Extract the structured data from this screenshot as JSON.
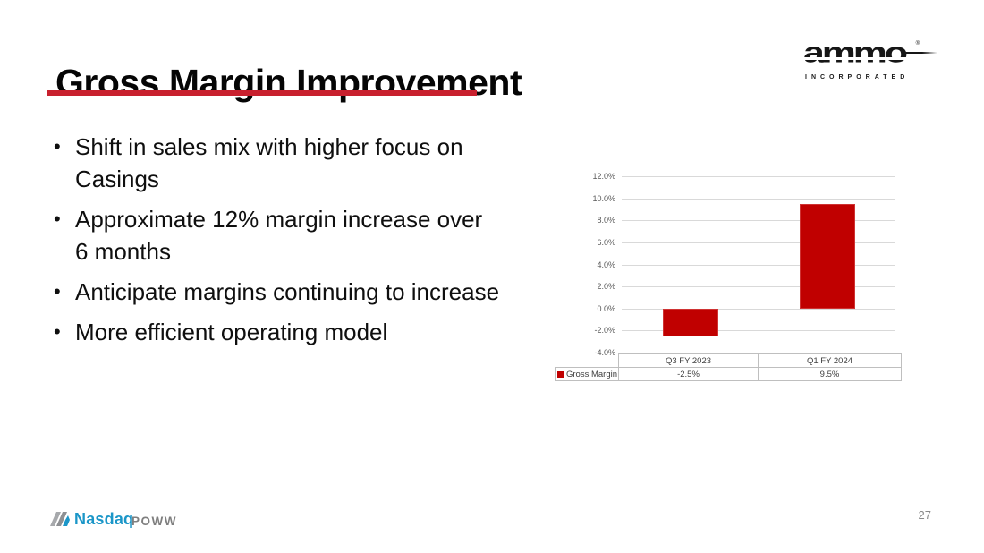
{
  "slide": {
    "title": "Gross Margin Improvement",
    "page_number": "27",
    "accent_color": "#C8202E"
  },
  "logo": {
    "brand": "ammo",
    "registered_mark": "®",
    "subtext": "INCORPORATED"
  },
  "bullets": [
    "Shift in sales mix with higher focus on Casings",
    "Approximate 12% margin increase over 6 months",
    "Anticipate margins continuing to increase",
    "More efficient operating model"
  ],
  "footer": {
    "exchange": "Nasdaq",
    "ticker": "POWW"
  },
  "chart_data": {
    "type": "bar",
    "categories": [
      "Q3 FY 2023",
      "Q1 FY 2024"
    ],
    "series": [
      {
        "name": "Gross Margin",
        "values": [
          -2.5,
          9.5
        ]
      }
    ],
    "value_labels": [
      "-2.5%",
      "9.5%"
    ],
    "title": "",
    "xlabel": "",
    "ylabel": "",
    "ylim": [
      -4,
      12
    ],
    "yticks": [
      "12.0%",
      "10.0%",
      "8.0%",
      "6.0%",
      "4.0%",
      "2.0%",
      "0.0%",
      "-2.0%",
      "-4.0%"
    ],
    "ytick_values": [
      12,
      10,
      8,
      6,
      4,
      2,
      0,
      -2,
      -4
    ],
    "bar_color": "#C00000",
    "grid": true,
    "gridline_color": "#D9D9D9",
    "legend_position": "table-left"
  }
}
